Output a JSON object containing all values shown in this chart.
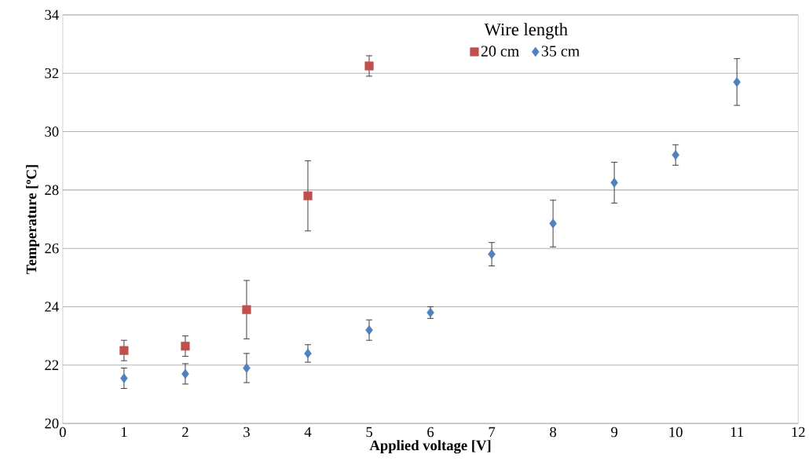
{
  "chart_data": {
    "type": "scatter",
    "xlabel": "Applied voltage [V]",
    "ylabel": "Temperature  [ºC]",
    "legend_title": "Wire length",
    "xlim": [
      0,
      12
    ],
    "xticks": [
      0,
      1,
      2,
      3,
      4,
      5,
      6,
      7,
      8,
      9,
      10,
      11,
      12
    ],
    "ylim": [
      20,
      34
    ],
    "yticks": [
      20,
      22,
      24,
      26,
      28,
      30,
      32,
      34
    ],
    "grid": "y",
    "legend": "top",
    "series": [
      {
        "name": "20 cm",
        "color": "#c0504d",
        "marker": "square",
        "x": [
          1,
          2,
          3,
          4,
          5
        ],
        "values": [
          22.5,
          22.65,
          23.9,
          27.8,
          32.25
        ],
        "errors": [
          0.35,
          0.35,
          1.0,
          1.2,
          0.35
        ]
      },
      {
        "name": "35 cm",
        "color": "#4f81bd",
        "marker": "diamond",
        "x": [
          1,
          2,
          3,
          4,
          5,
          6,
          7,
          8,
          9,
          10,
          11
        ],
        "values": [
          21.55,
          21.7,
          21.9,
          22.4,
          23.2,
          23.8,
          25.8,
          26.85,
          28.25,
          29.2,
          31.7
        ],
        "errors": [
          0.35,
          0.35,
          0.5,
          0.3,
          0.35,
          0.2,
          0.4,
          0.8,
          0.7,
          0.35,
          0.8
        ]
      }
    ]
  }
}
